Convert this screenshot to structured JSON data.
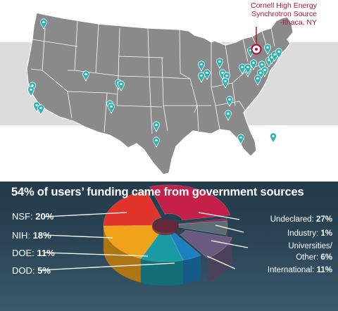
{
  "callout": {
    "line1": "Cornell High Energy",
    "line2": "Synchrotron Source",
    "line3": "-Ithaca, NY"
  },
  "pie": {
    "title": "54% of users’ funding came from government sources",
    "segments": [
      {
        "name": "NSF:",
        "pct": "20%",
        "value": 20,
        "color": "#e0342a"
      },
      {
        "name": "NIH:",
        "pct": "18%",
        "value": 18,
        "color": "#f0a21a"
      },
      {
        "name": "DOE:",
        "pct": "11%",
        "value": 11,
        "color": "#1a9aa2"
      },
      {
        "name": "DOD:",
        "pct": "5%",
        "value": 5,
        "color": "#1d7fc0"
      },
      {
        "name": "International:",
        "pct": "11%",
        "value": 11,
        "color": "#6a5a80"
      },
      {
        "name": "Universities/",
        "name2": "Other:",
        "pct": "6%",
        "value": 6,
        "color": "#5b6d74"
      },
      {
        "name": "Industry:",
        "pct": "1%",
        "value": 1,
        "color": "#8a2a52"
      },
      {
        "name": "Undeclared:",
        "pct": "27%",
        "value": 27,
        "color": "#c4204a"
      }
    ]
  },
  "colors": {
    "map_land": "#8a8a8a",
    "map_border": "#ffffff",
    "pin": "#2ab3b3",
    "highlight_pin": "#b3143a"
  },
  "icons": {
    "pin": "map-pin-icon",
    "highlight": "map-pin-icon"
  }
}
